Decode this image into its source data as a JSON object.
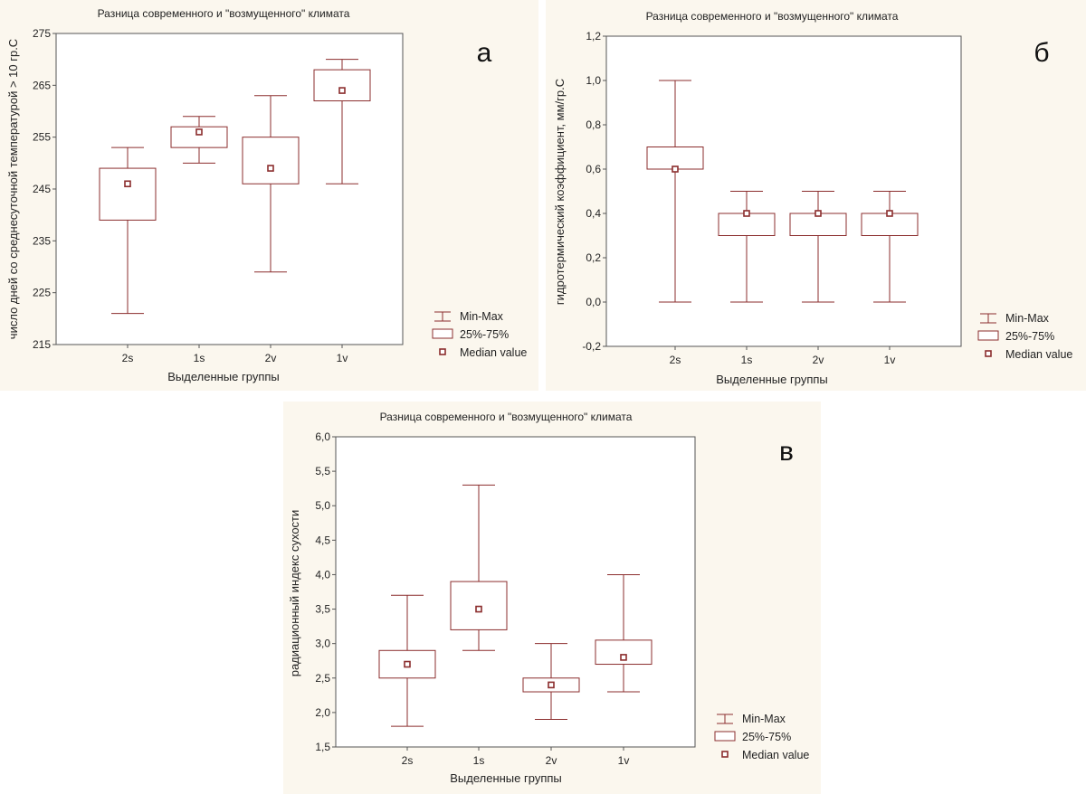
{
  "chart_data": [
    {
      "id": "a",
      "type": "boxplot",
      "panel_letter": "а",
      "title": "Разница современного и \"возмущенного\" климата",
      "xlabel": "Выделенные группы",
      "ylabel": "число дней со среднесуточной температурой > 10 гр.С",
      "ylim": [
        215,
        275
      ],
      "yticks": [
        "215",
        "225",
        "235",
        "245",
        "255",
        "265",
        "275"
      ],
      "ytick_values": [
        215,
        225,
        235,
        245,
        255,
        265,
        275
      ],
      "categories": [
        "2s",
        "1s",
        "2v",
        "1v"
      ],
      "min": [
        221,
        250,
        229,
        246
      ],
      "q1": [
        239,
        253,
        246,
        262
      ],
      "median": [
        246,
        256,
        249,
        264
      ],
      "q3": [
        249,
        257,
        255,
        268
      ],
      "max": [
        253,
        259,
        263,
        270
      ],
      "legend": [
        "Min-Max",
        "25%-75%",
        "Median value"
      ]
    },
    {
      "id": "b",
      "type": "boxplot",
      "panel_letter": "б",
      "title": "Разница современного и \"возмущенного\" климата",
      "xlabel": "Выделенные группы",
      "ylabel": "гидротермический коэффициент, мм/гр.С",
      "ylim": [
        -0.2,
        1.2
      ],
      "yticks": [
        "-0,2",
        "0,0",
        "0,2",
        "0,4",
        "0,6",
        "0,8",
        "1,0",
        "1,2"
      ],
      "ytick_values": [
        -0.2,
        0,
        0.2,
        0.4,
        0.6,
        0.8,
        1.0,
        1.2
      ],
      "categories": [
        "2s",
        "1s",
        "2v",
        "1v"
      ],
      "min": [
        0.0,
        0.0,
        0.0,
        0.0
      ],
      "q1": [
        0.6,
        0.3,
        0.3,
        0.3
      ],
      "median": [
        0.6,
        0.4,
        0.4,
        0.4
      ],
      "q3": [
        0.7,
        0.4,
        0.4,
        0.4
      ],
      "max": [
        1.0,
        0.5,
        0.5,
        0.5
      ],
      "legend": [
        "Min-Max",
        "25%-75%",
        "Median value"
      ]
    },
    {
      "id": "c",
      "type": "boxplot",
      "panel_letter": "в",
      "title": "Разница современного и \"возмущенного\" климата",
      "xlabel": "Выделенные группы",
      "ylabel": "радиационный индекс сухости",
      "ylim": [
        1.5,
        6.0
      ],
      "yticks": [
        "1,5",
        "2,0",
        "2,5",
        "3,0",
        "3,5",
        "4,0",
        "4,5",
        "5,0",
        "5,5",
        "6,0"
      ],
      "ytick_values": [
        1.5,
        2.0,
        2.5,
        3.0,
        3.5,
        4.0,
        4.5,
        5.0,
        5.5,
        6.0
      ],
      "categories": [
        "2s",
        "1s",
        "2v",
        "1v"
      ],
      "min": [
        1.8,
        2.9,
        1.9,
        2.3
      ],
      "q1": [
        2.5,
        3.2,
        2.3,
        2.7
      ],
      "median": [
        2.7,
        3.5,
        2.4,
        2.8
      ],
      "q3": [
        2.9,
        3.9,
        2.5,
        3.05
      ],
      "max": [
        3.7,
        5.3,
        3.0,
        4.0
      ],
      "legend": [
        "Min-Max",
        "25%-75%",
        "Median value"
      ]
    }
  ]
}
